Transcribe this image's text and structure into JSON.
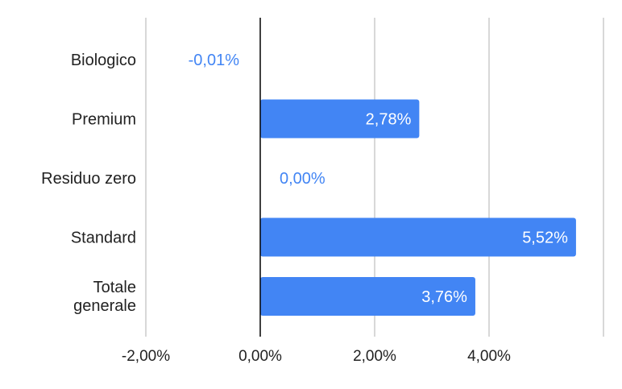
{
  "chart_data": {
    "type": "bar",
    "orientation": "horizontal",
    "categories": [
      "Biologico",
      "Premium",
      "Residuo zero",
      "Standard",
      "Totale generale"
    ],
    "values": [
      -0.01,
      2.78,
      0.0,
      5.52,
      3.76
    ],
    "value_labels": [
      "-0,01%",
      "2,78%",
      "0,00%",
      "5,52%",
      "3,76%"
    ],
    "x_ticks": [
      -2,
      0,
      2,
      4,
      6
    ],
    "x_tick_labels": [
      "-2,00%",
      "0,00%",
      "2,00%",
      "4,00%",
      ""
    ],
    "xlim": [
      -2,
      6
    ],
    "title": "",
    "xlabel": "",
    "ylabel": "",
    "grid": true,
    "legend": "none",
    "bar_color": "#4285f4",
    "grid_color": "#cccccc",
    "axis_color": "#000000",
    "inside_label_color": "#ffffff",
    "outside_label_color": "#4285f4"
  }
}
